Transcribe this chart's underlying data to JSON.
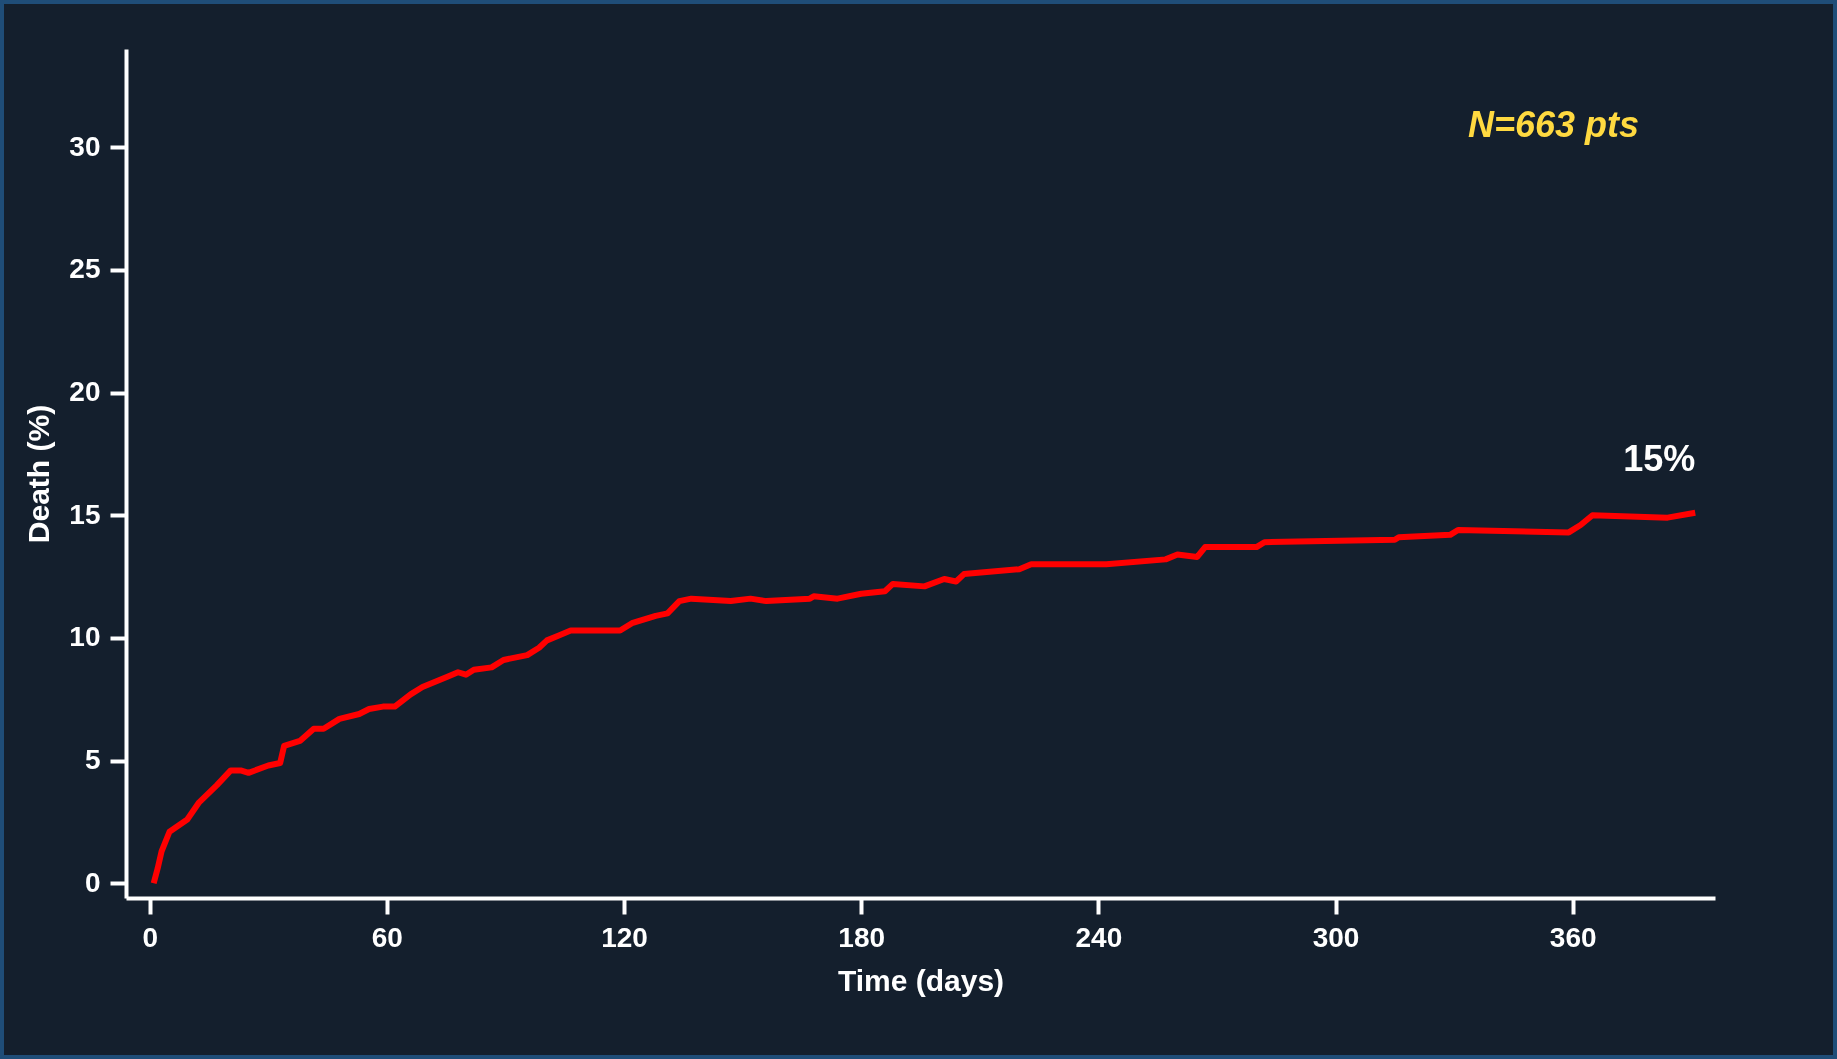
{
  "chart_data": {
    "type": "line",
    "xlabel": "Time (days)",
    "ylabel": "Death (%)",
    "x": [
      1,
      2,
      3,
      5,
      9.5,
      12.5,
      17,
      20.5,
      23,
      25,
      30,
      33,
      34,
      38,
      41.5,
      44,
      48,
      53,
      55.5,
      59,
      62,
      66,
      69,
      75,
      78,
      80,
      82,
      86.5,
      89.5,
      95.5,
      98.5,
      100.5,
      103.5,
      106.5,
      119,
      122,
      128,
      131,
      134,
      137,
      147,
      152,
      156,
      167,
      168,
      174,
      180,
      186,
      188,
      196,
      201,
      204,
      206,
      220,
      223,
      242,
      257,
      260,
      265,
      267,
      280,
      282,
      315,
      316,
      329,
      331,
      359,
      362,
      365,
      384,
      391
    ],
    "series": [
      {
        "color": "#ff0000",
        "values": [
          0,
          0.6,
          1.3,
          2.1,
          2.6,
          3.3,
          4.0,
          4.6,
          4.6,
          4.5,
          4.8,
          4.9,
          5.6,
          5.8,
          6.3,
          6.3,
          6.7,
          6.9,
          7.1,
          7.2,
          7.2,
          7.7,
          8.0,
          8.4,
          8.6,
          8.5,
          8.7,
          8.8,
          9.1,
          9.3,
          9.6,
          9.9,
          10.1,
          10.3,
          10.3,
          10.6,
          10.9,
          11.0,
          11.5,
          11.6,
          11.5,
          11.6,
          11.5,
          11.6,
          11.7,
          11.6,
          11.8,
          11.9,
          12.2,
          12.1,
          12.4,
          12.3,
          12.6,
          12.8,
          13.0,
          13.0,
          13.2,
          13.4,
          13.3,
          13.7,
          13.7,
          13.9,
          14.0,
          14.1,
          14.2,
          14.4,
          14.3,
          14.6,
          15.0,
          14.9,
          15.1
        ]
      }
    ],
    "xlim": [
      -6,
      396
    ],
    "ylim": [
      -0.6,
      34
    ],
    "xticks": [
      0,
      60,
      120,
      180,
      240,
      300,
      360
    ],
    "yticks": [
      0,
      5,
      10,
      15,
      20,
      25,
      30
    ],
    "grid": false,
    "line_style": "solid",
    "annotations": [
      "N=663 pts",
      {
        "text": "15%",
        "x": 391,
        "y": 15.1
      }
    ]
  }
}
